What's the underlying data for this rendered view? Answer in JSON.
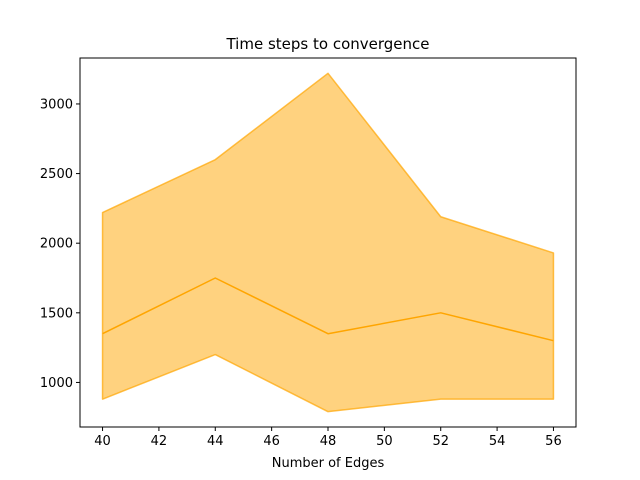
{
  "chart_data": {
    "type": "area",
    "title": "Time steps to convergence",
    "xlabel": "Number of Edges",
    "ylabel": "",
    "x": [
      40,
      44,
      48,
      52,
      56
    ],
    "series": [
      {
        "values": [
          1350,
          1750,
          1350,
          1500,
          1300
        ],
        "lower": [
          880,
          1200,
          790,
          880,
          880
        ],
        "upper": [
          2220,
          2600,
          3220,
          2190,
          1930
        ]
      }
    ],
    "xlim": [
      39.2,
      56.8
    ],
    "ylim": [
      680,
      3330
    ],
    "xticks": [
      40,
      42,
      44,
      46,
      48,
      50,
      52,
      54,
      56
    ],
    "yticks": [
      1000,
      1500,
      2000,
      2500,
      3000
    ],
    "grid": false,
    "legend": "none",
    "colors": {
      "line": "#ffa500",
      "band_fill": "#ffa500",
      "band_alpha": 0.5
    }
  }
}
